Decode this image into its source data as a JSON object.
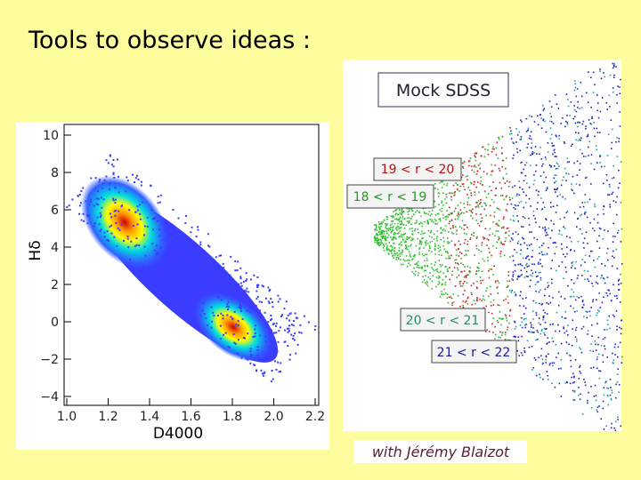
{
  "slide": {
    "title": "Tools to observe ideas :",
    "left_plot": {
      "y_label": "Hδ",
      "x_label": "D4000",
      "yticks": [
        "10",
        "8",
        "6",
        "4",
        "2",
        "0",
        "−2",
        "−4"
      ],
      "xticks": [
        "1.0",
        "1.2",
        "1.4",
        "1.6",
        "1.8",
        "2.0",
        "2.2"
      ]
    },
    "right_plot": {
      "title": "Mock SDSS",
      "slices": [
        "19 < r < 20",
        "18 < r < 19",
        "20 < r < 21",
        "21 < r < 22"
      ]
    },
    "credit": "with Jérémy Blaizot"
  }
}
